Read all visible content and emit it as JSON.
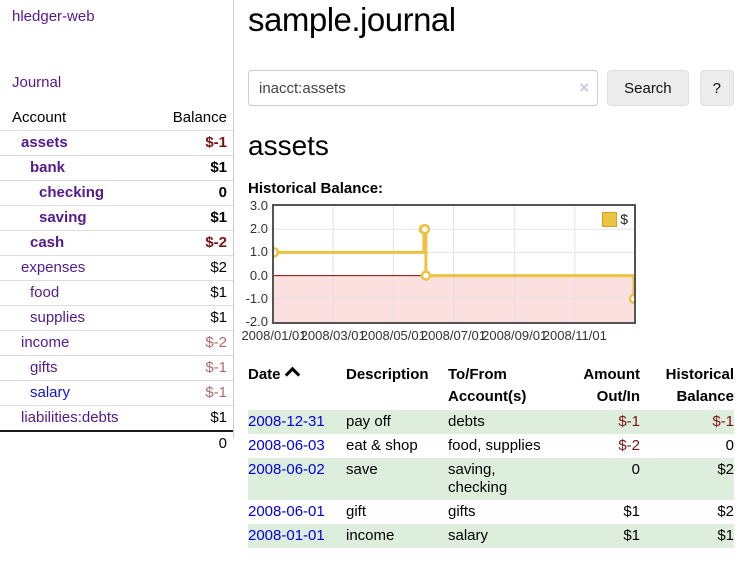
{
  "colors": {
    "link_purple": "#551a8b",
    "link_blue": "#1414cc",
    "negative_strong": "#7d1414",
    "negative_weak": "#b36b6b",
    "row_green": "#ddeedd",
    "chart_gold": "#edc240",
    "chart_negative_fill": "#fcdfdf",
    "chart_zero_line": "#8b0000"
  },
  "sidebar": {
    "app_title": "hledger-web",
    "journal_link": "Journal",
    "accounts_table": {
      "headers": {
        "account": "Account",
        "balance": "Balance"
      },
      "rows": [
        {
          "account": "assets",
          "balance": "$-1",
          "indent": 1,
          "bold": true,
          "acct_style": "purple",
          "bal_style": "neg-strong"
        },
        {
          "account": "bank",
          "balance": "$1",
          "indent": 2,
          "bold": true,
          "acct_style": "purple",
          "bal_style": "pos"
        },
        {
          "account": "checking",
          "balance": "0",
          "indent": 3,
          "bold": true,
          "acct_style": "purple",
          "bal_style": "pos"
        },
        {
          "account": "saving",
          "balance": "$1",
          "indent": 3,
          "bold": true,
          "acct_style": "purple",
          "bal_style": "pos"
        },
        {
          "account": "cash",
          "balance": "$-2",
          "indent": 2,
          "bold": true,
          "acct_style": "purple",
          "bal_style": "neg-strong"
        },
        {
          "account": "expenses",
          "balance": "$2",
          "indent": 1,
          "bold": false,
          "acct_style": "purple",
          "bal_style": "pos"
        },
        {
          "account": "food",
          "balance": "$1",
          "indent": 2,
          "bold": false,
          "acct_style": "purple",
          "bal_style": "pos"
        },
        {
          "account": "supplies",
          "balance": "$1",
          "indent": 2,
          "bold": false,
          "acct_style": "purple",
          "bal_style": "pos"
        },
        {
          "account": "income",
          "balance": "$-2",
          "indent": 1,
          "bold": false,
          "acct_style": "purple",
          "bal_style": "neg-weak"
        },
        {
          "account": "gifts",
          "balance": "$-1",
          "indent": 2,
          "bold": false,
          "acct_style": "purple",
          "bal_style": "neg-weak"
        },
        {
          "account": "salary",
          "balance": "$-1",
          "indent": 2,
          "bold": false,
          "acct_style": "blue",
          "bal_style": "neg-weak"
        },
        {
          "account": "liabilities:debts",
          "balance": "$1",
          "indent": 1,
          "bold": false,
          "acct_style": "purple",
          "bal_style": "pos"
        }
      ],
      "total": "0"
    }
  },
  "main": {
    "title": "sample.journal",
    "search": {
      "value": "inacct:assets",
      "clear_icon": "×",
      "search_button": "Search",
      "help_button": "?"
    },
    "account_heading": "assets",
    "chart_label": "Historical Balance:"
  },
  "chart_data": {
    "type": "line",
    "step": true,
    "title": "Historical Balance",
    "series": [
      {
        "name": "$",
        "color": "#edc240",
        "points": [
          [
            "2008-01-01",
            1
          ],
          [
            "2008-06-01",
            2
          ],
          [
            "2008-06-02",
            2
          ],
          [
            "2008-06-03",
            0
          ],
          [
            "2008-12-31",
            -1
          ]
        ]
      }
    ],
    "xlim": [
      "2008-01-01",
      "2008-12-31"
    ],
    "ylim": [
      -2,
      3
    ],
    "x_ticks": [
      {
        "label": "2008/01/01",
        "date": "2008-01-01"
      },
      {
        "label": "2008/03/01",
        "date": "2008-03-01"
      },
      {
        "label": "2008/05/01",
        "date": "2008-05-01"
      },
      {
        "label": "2008/07/01",
        "date": "2008-07-01"
      },
      {
        "label": "2008/09/01",
        "date": "2008-09-01"
      },
      {
        "label": "2008/11/01",
        "date": "2008-11-01"
      }
    ],
    "y_ticks": [
      {
        "label": "3.0",
        "value": 3
      },
      {
        "label": "2.0",
        "value": 2
      },
      {
        "label": "1.0",
        "value": 1
      },
      {
        "label": "0.0",
        "value": 0
      },
      {
        "label": "-1.0",
        "value": -1
      },
      {
        "label": "-2.0",
        "value": -2
      }
    ],
    "grid": true,
    "legend_position": "top-right",
    "legend_label": "$"
  },
  "transactions": {
    "headers": {
      "date": "Date",
      "description": "Description",
      "accounts": "To/From Account(s)",
      "amount": "Amount Out/In",
      "balance": "Historical Balance"
    },
    "rows": [
      {
        "date": "2008-12-31",
        "description": "pay off",
        "accounts": "debts",
        "amount": "$-1",
        "amount_neg": true,
        "balance": "$-1",
        "balance_neg": true
      },
      {
        "date": "2008-06-03",
        "description": "eat & shop",
        "accounts": "food, supplies",
        "amount": "$-2",
        "amount_neg": true,
        "balance": "0",
        "balance_neg": false
      },
      {
        "date": "2008-06-02",
        "description": "save",
        "accounts": "saving, checking",
        "amount": "0",
        "amount_neg": false,
        "balance": "$2",
        "balance_neg": false
      },
      {
        "date": "2008-06-01",
        "description": "gift",
        "accounts": "gifts",
        "amount": "$1",
        "amount_neg": false,
        "balance": "$2",
        "balance_neg": false
      },
      {
        "date": "2008-01-01",
        "description": "income",
        "accounts": "salary",
        "amount": "$1",
        "amount_neg": false,
        "balance": "$1",
        "balance_neg": false
      }
    ]
  }
}
